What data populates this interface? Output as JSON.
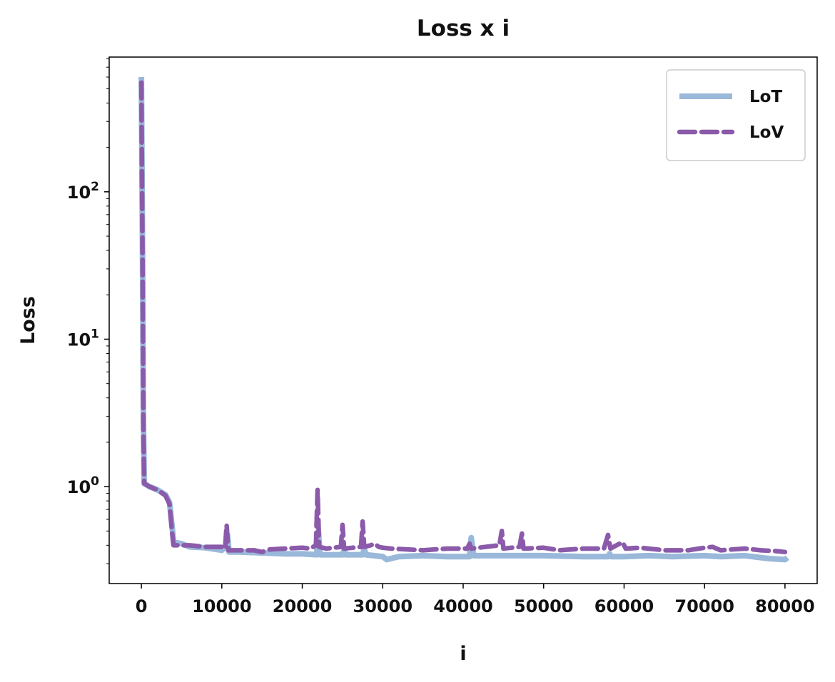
{
  "chart_data": {
    "type": "line",
    "title": "Loss x i",
    "xlabel": "i",
    "ylabel": "Loss",
    "xlim": [
      -4000,
      84000
    ],
    "ylim": [
      0.22,
      820
    ],
    "yscale": "log",
    "grid": false,
    "legend": "top-right",
    "x_ticks": [
      0,
      10000,
      20000,
      30000,
      40000,
      50000,
      60000,
      70000,
      80000
    ],
    "x_tick_labels": [
      "0",
      "10000",
      "20000",
      "30000",
      "40000",
      "50000",
      "60000",
      "70000",
      "80000"
    ],
    "y_ticks": [
      {
        "value": 1,
        "base": "10",
        "exp": "0"
      },
      {
        "value": 10,
        "base": "10",
        "exp": "1"
      },
      {
        "value": 100,
        "base": "10",
        "exp": "2"
      }
    ],
    "series": [
      {
        "name": "LoT",
        "color": "#9ab8d9",
        "style": "solid",
        "points": [
          [
            0,
            600
          ],
          [
            150,
            35
          ],
          [
            250,
            3
          ],
          [
            350,
            1.05
          ],
          [
            1000,
            1.0
          ],
          [
            2000,
            0.95
          ],
          [
            3000,
            0.88
          ],
          [
            3500,
            0.78
          ],
          [
            3800,
            0.55
          ],
          [
            4000,
            0.42
          ],
          [
            5000,
            0.41
          ],
          [
            6000,
            0.39
          ],
          [
            8000,
            0.385
          ],
          [
            10000,
            0.37
          ],
          [
            10500,
            0.39
          ],
          [
            10700,
            0.47
          ],
          [
            10900,
            0.36
          ],
          [
            12000,
            0.36
          ],
          [
            15000,
            0.355
          ],
          [
            18000,
            0.35
          ],
          [
            20000,
            0.35
          ],
          [
            21800,
            0.345
          ],
          [
            22000,
            0.5
          ],
          [
            22200,
            0.345
          ],
          [
            25000,
            0.345
          ],
          [
            25200,
            0.37
          ],
          [
            25400,
            0.345
          ],
          [
            27500,
            0.345
          ],
          [
            27700,
            0.38
          ],
          [
            27900,
            0.345
          ],
          [
            30000,
            0.335
          ],
          [
            30500,
            0.32
          ],
          [
            32000,
            0.335
          ],
          [
            35000,
            0.34
          ],
          [
            38000,
            0.335
          ],
          [
            40800,
            0.335
          ],
          [
            41000,
            0.45
          ],
          [
            41300,
            0.34
          ],
          [
            45000,
            0.34
          ],
          [
            50000,
            0.34
          ],
          [
            55000,
            0.335
          ],
          [
            58000,
            0.335
          ],
          [
            58200,
            0.35
          ],
          [
            58400,
            0.335
          ],
          [
            60000,
            0.335
          ],
          [
            63000,
            0.34
          ],
          [
            66000,
            0.335
          ],
          [
            70000,
            0.34
          ],
          [
            72000,
            0.335
          ],
          [
            75000,
            0.34
          ],
          [
            78000,
            0.325
          ],
          [
            80000,
            0.32
          ],
          [
            80300,
            0.33
          ]
        ]
      },
      {
        "name": "LoV",
        "color": "#8b5aaa",
        "style": "dashed",
        "points": [
          [
            0,
            550
          ],
          [
            150,
            30
          ],
          [
            250,
            2.5
          ],
          [
            350,
            1.05
          ],
          [
            1000,
            1.0
          ],
          [
            2000,
            0.95
          ],
          [
            3000,
            0.87
          ],
          [
            3500,
            0.76
          ],
          [
            3800,
            0.5
          ],
          [
            4000,
            0.4
          ],
          [
            5000,
            0.4
          ],
          [
            6000,
            0.4
          ],
          [
            8000,
            0.39
          ],
          [
            10000,
            0.39
          ],
          [
            10400,
            0.38
          ],
          [
            10600,
            0.55
          ],
          [
            10800,
            0.37
          ],
          [
            12000,
            0.37
          ],
          [
            14000,
            0.37
          ],
          [
            15000,
            0.36
          ],
          [
            16000,
            0.375
          ],
          [
            18000,
            0.38
          ],
          [
            20000,
            0.385
          ],
          [
            21000,
            0.38
          ],
          [
            21700,
            0.4
          ],
          [
            21900,
            0.95
          ],
          [
            22100,
            0.39
          ],
          [
            23000,
            0.38
          ],
          [
            24800,
            0.39
          ],
          [
            25000,
            0.55
          ],
          [
            25200,
            0.38
          ],
          [
            27300,
            0.39
          ],
          [
            27500,
            0.58
          ],
          [
            27700,
            0.39
          ],
          [
            28500,
            0.4
          ],
          [
            29000,
            0.41
          ],
          [
            29500,
            0.39
          ],
          [
            30000,
            0.385
          ],
          [
            31000,
            0.38
          ],
          [
            33000,
            0.375
          ],
          [
            35000,
            0.37
          ],
          [
            38000,
            0.38
          ],
          [
            40500,
            0.38
          ],
          [
            40800,
            0.41
          ],
          [
            41000,
            0.38
          ],
          [
            44500,
            0.4
          ],
          [
            44800,
            0.5
          ],
          [
            45000,
            0.38
          ],
          [
            47000,
            0.39
          ],
          [
            47300,
            0.48
          ],
          [
            47500,
            0.38
          ],
          [
            50000,
            0.385
          ],
          [
            52000,
            0.37
          ],
          [
            55000,
            0.38
          ],
          [
            57500,
            0.38
          ],
          [
            58000,
            0.47
          ],
          [
            58300,
            0.38
          ],
          [
            59800,
            0.42
          ],
          [
            60200,
            0.38
          ],
          [
            62000,
            0.385
          ],
          [
            65000,
            0.37
          ],
          [
            68000,
            0.37
          ],
          [
            70000,
            0.385
          ],
          [
            71000,
            0.39
          ],
          [
            72000,
            0.37
          ],
          [
            75000,
            0.38
          ],
          [
            77000,
            0.37
          ],
          [
            79000,
            0.365
          ],
          [
            80000,
            0.36
          ]
        ]
      }
    ]
  }
}
